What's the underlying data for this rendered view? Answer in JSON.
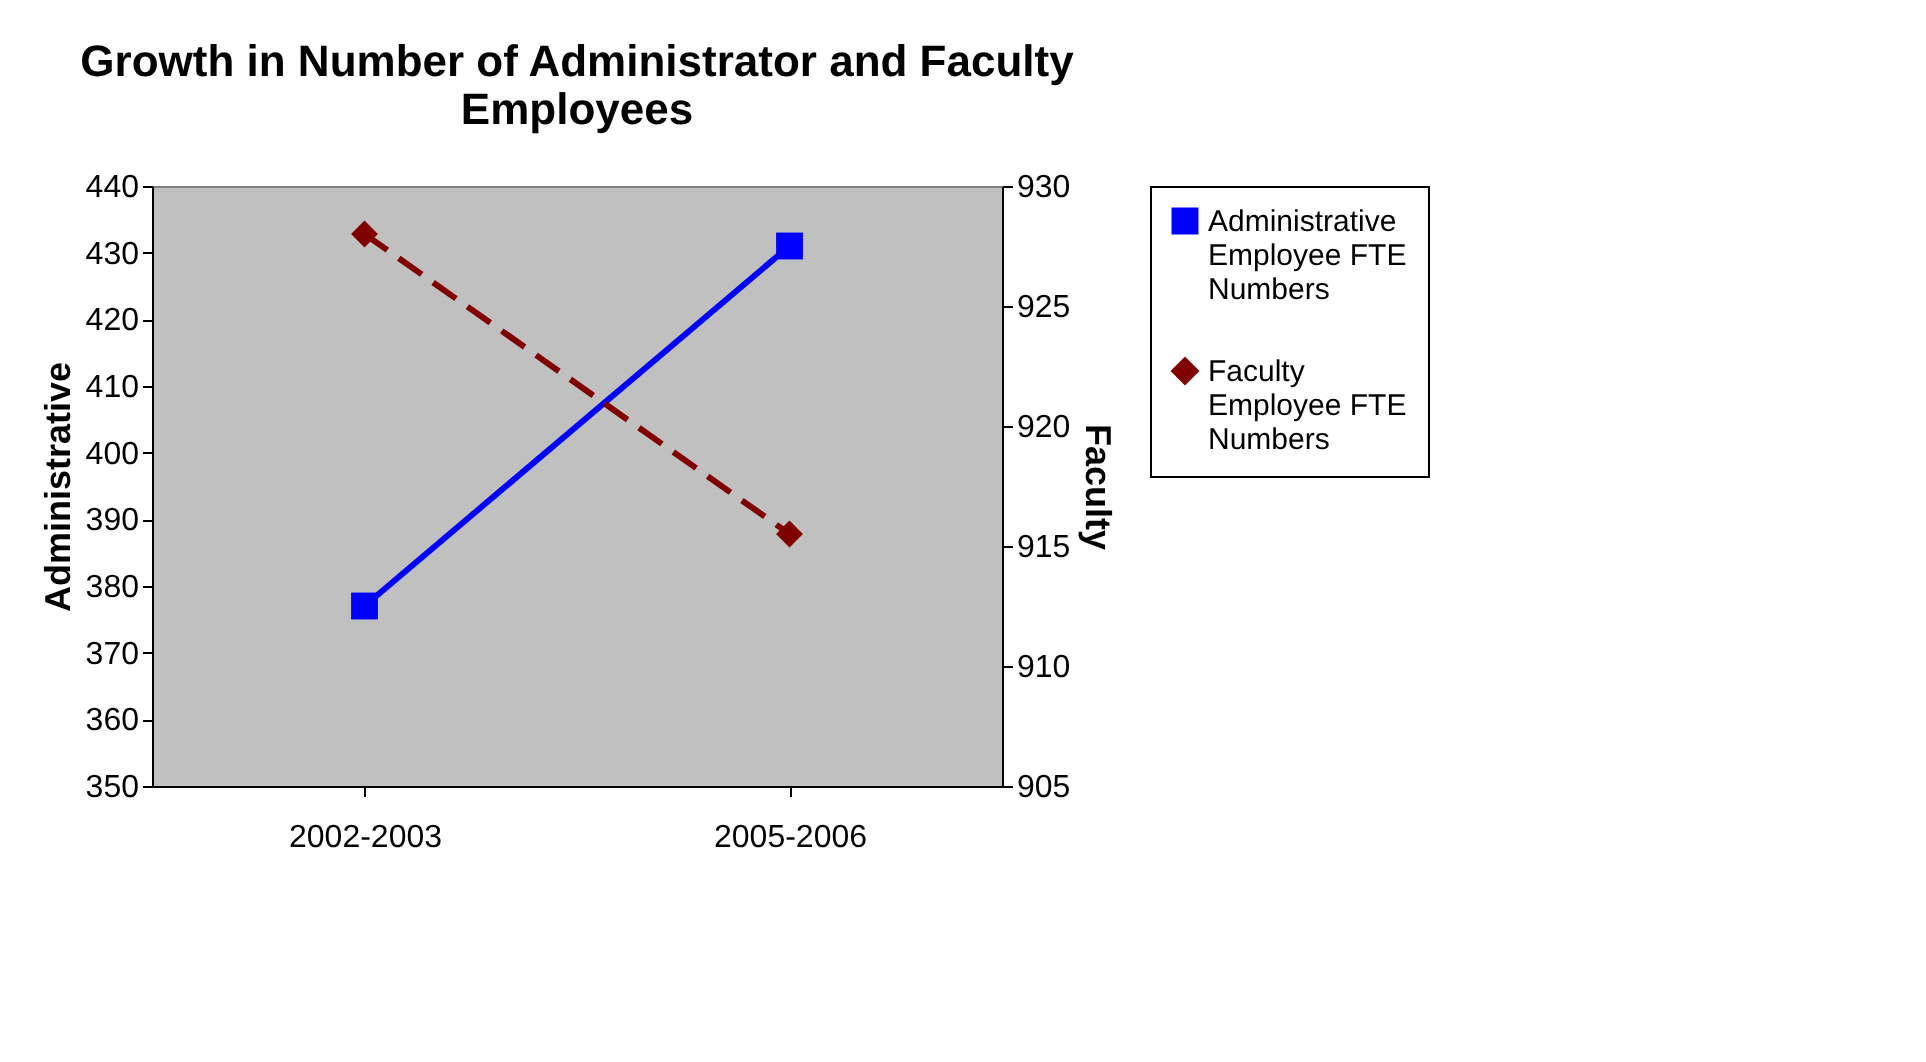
{
  "chart_data": {
    "type": "line",
    "title": "Growth in Number of Administrator and Faculty Employees",
    "ylabel": "Administrative",
    "y2label": "Faculty",
    "categories": [
      "2002-2003",
      "2005-2006"
    ],
    "series": [
      {
        "name": "Administrative Employee FTE Numbers",
        "color": "#0000ff",
        "values": [
          377,
          431
        ],
        "marker": "square",
        "line_style": "solid"
      },
      {
        "name": "Faculty Employee FTE Numbers",
        "color": "#800000",
        "values": [
          928,
          915.5
        ],
        "marker": "diamond",
        "line_style": "dashed",
        "axis": "y2"
      }
    ],
    "ylim": [
      350,
      440
    ],
    "yticks": [
      350,
      360,
      370,
      380,
      390,
      400,
      410,
      420,
      430,
      440
    ],
    "y2lim": [
      905,
      930
    ],
    "y2ticks": [
      905,
      910,
      915,
      920,
      925,
      930
    ],
    "grid": false,
    "legend": "right"
  }
}
